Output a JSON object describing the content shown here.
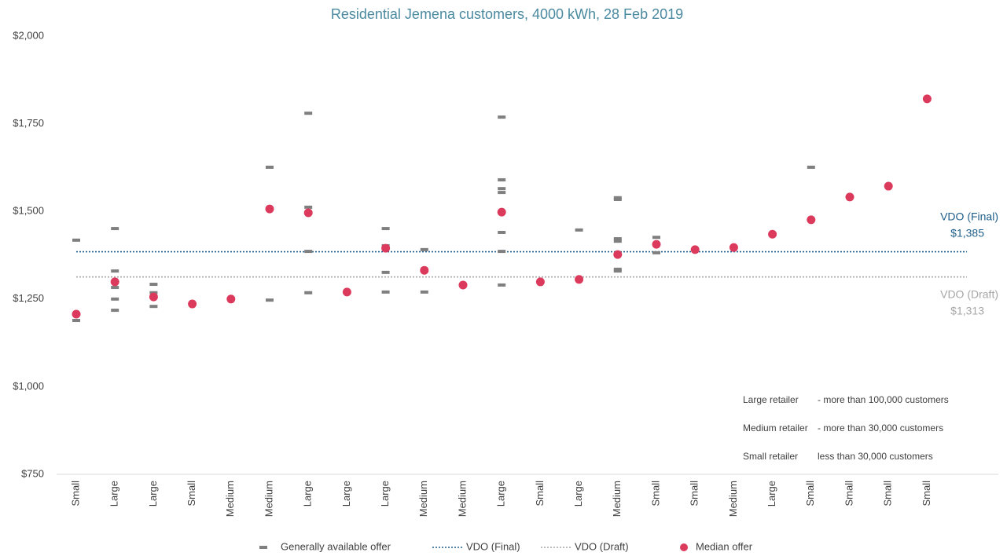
{
  "chart_data": {
    "type": "scatter",
    "title": "Residential Jemena customers, 4000 kWh, 28 Feb 2019",
    "categories": [
      "Small",
      "Large",
      "Large",
      "Small",
      "Medium",
      "Medium",
      "Large",
      "Large",
      "Large",
      "Medium",
      "Medium",
      "Large",
      "Small",
      "Large",
      "Medium",
      "Small",
      "Small",
      "Medium",
      "Large",
      "Small",
      "Small",
      "Small",
      "Small"
    ],
    "series": [
      {
        "name": "Generally available offer",
        "color": "#7f7f7f",
        "marker": "dash",
        "values": [
          [
            1418,
            1189
          ],
          [
            1451,
            1330,
            1283,
            1250,
            1218
          ],
          [
            1292,
            1268,
            1229
          ],
          [],
          [],
          [
            1626,
            1247
          ],
          [
            1780,
            1512,
            1386,
            1268
          ],
          [],
          [
            1451,
            1402,
            1326,
            1270
          ],
          [
            1391,
            1270
          ],
          [],
          [
            1769,
            1590,
            1565,
            1554,
            1440,
            1386,
            1290
          ],
          [],
          [
            1447
          ],
          [
            1539,
            1534,
            1422,
            1415,
            1335,
            1330
          ],
          [
            1426,
            1382
          ],
          [],
          [],
          [],
          [
            1626
          ],
          [],
          [],
          []
        ]
      },
      {
        "name": "Median offer",
        "color": "#dc3a5c",
        "marker": "dot",
        "values": [
          1207,
          1299,
          1256,
          1236,
          1250,
          1507,
          1496,
          1270,
          1395,
          1332,
          1290,
          1498,
          1299,
          1306,
          1377,
          1406,
          1391,
          1397,
          1435,
          1476,
          1541,
          1572,
          1821
        ]
      }
    ],
    "reference_lines": [
      {
        "name": "VDO (Final)",
        "value": 1385,
        "label": "$1,385",
        "color": "#1f5f8b"
      },
      {
        "name": "VDO (Draft)",
        "value": 1313,
        "label": "$1,313",
        "color": "#a6a6a6"
      }
    ],
    "ylim": [
      750,
      2000
    ],
    "yticks": [
      {
        "value": 750,
        "label": "$750"
      },
      {
        "value": 1000,
        "label": "$1,000"
      },
      {
        "value": 1250,
        "label": "$1,250"
      },
      {
        "value": 1500,
        "label": "$1,500"
      },
      {
        "value": 1750,
        "label": "$1,750"
      },
      {
        "value": 2000,
        "label": "$2,000"
      }
    ],
    "grid": false,
    "notes": [
      {
        "term": "Large retailer",
        "desc": "- more than 100,000 customers"
      },
      {
        "term": "Medium retailer",
        "desc": "- more than 30,000 customers"
      },
      {
        "term": "Small retailer",
        "desc": "less than 30,000 customers"
      }
    ]
  }
}
